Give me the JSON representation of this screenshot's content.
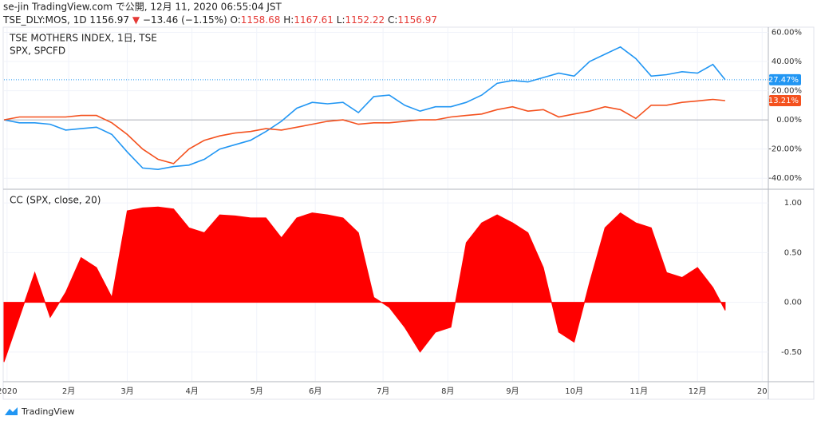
{
  "header": {
    "line1": "se-jin TradingView.com で公開, 12月 11, 2020 06:55:04 JST",
    "symbol": "TSE_DLY:MOS, 1D",
    "last": "1156.97",
    "arrow": "▼",
    "change": "−13.46 (−1.15%)",
    "ohlc": [
      {
        "label": "O:",
        "value": "1158.68"
      },
      {
        "label": "H:",
        "value": "1167.61"
      },
      {
        "label": "L:",
        "value": "1152.22"
      },
      {
        "label": "C:",
        "value": "1156.97"
      }
    ]
  },
  "chart_data": [
    {
      "type": "line",
      "grid": true,
      "x": [
        0,
        5,
        10,
        15,
        20,
        25,
        30,
        35,
        40,
        45,
        50,
        55,
        60,
        65,
        70,
        75,
        80,
        85,
        90,
        95,
        100,
        105,
        110,
        115,
        120,
        125,
        130,
        135,
        140,
        145,
        150,
        155,
        160,
        165,
        170,
        175,
        180,
        185,
        190,
        195,
        200,
        205,
        210,
        215,
        220,
        225,
        230,
        234
      ],
      "xlim": [
        0,
        248
      ],
      "xticks": [
        {
          "value": 1,
          "label": "2020"
        },
        {
          "value": 21,
          "label": "2月"
        },
        {
          "value": 40,
          "label": "3月"
        },
        {
          "value": 61,
          "label": "4月"
        },
        {
          "value": 82,
          "label": "5月"
        },
        {
          "value": 101,
          "label": "6月"
        },
        {
          "value": 123,
          "label": "7月"
        },
        {
          "value": 144,
          "label": "8月"
        },
        {
          "value": 165,
          "label": "9月"
        },
        {
          "value": 185,
          "label": "10月"
        },
        {
          "value": 206,
          "label": "11月"
        },
        {
          "value": 225,
          "label": "12月"
        },
        {
          "value": 246,
          "label": "20"
        }
      ],
      "ylim": [
        -47,
        63
      ],
      "yticks": [
        {
          "value": 60,
          "label": "60.00%"
        },
        {
          "value": 40,
          "label": "40.00%"
        },
        {
          "value": 20,
          "label": "20.00%"
        },
        {
          "value": 0,
          "label": "0.00%"
        },
        {
          "value": -20,
          "label": "-20.00%"
        },
        {
          "value": -40,
          "label": "-40.00%"
        }
      ],
      "series": [
        {
          "name": "TSE MOTHERS INDEX, 1日, TSE",
          "color": "#2196f3",
          "last_value_label": "27.47%",
          "values": [
            0,
            -2,
            -2,
            -3,
            -7,
            -6,
            -5,
            -10,
            -22,
            -33,
            -34,
            -32,
            -31,
            -27,
            -20,
            -17,
            -14,
            -8,
            -1,
            8,
            12,
            11,
            12,
            5,
            16,
            17,
            10,
            6,
            9,
            9,
            12,
            17,
            25,
            27,
            26,
            29,
            32,
            30,
            40,
            45,
            50,
            42,
            30,
            31,
            33,
            32,
            38,
            27.47
          ]
        },
        {
          "name": "SPX, SPCFD",
          "color": "#f4511e",
          "last_value_label": "13.21%",
          "values": [
            0,
            2,
            2,
            2,
            2,
            3,
            3,
            -2,
            -10,
            -20,
            -27,
            -30,
            -20,
            -14,
            -11,
            -9,
            -8,
            -6,
            -7,
            -5,
            -3,
            -1,
            0,
            -3,
            -2,
            -2,
            -1,
            0,
            0,
            2,
            3,
            4,
            7,
            9,
            6,
            7,
            2,
            4,
            6,
            9,
            7,
            1,
            10,
            10,
            12,
            13,
            14,
            13.21
          ]
        }
      ]
    },
    {
      "type": "area",
      "title": "CC (SPX, close, 20)",
      "grid": true,
      "color": "#ff0000",
      "x": [
        0,
        5,
        10,
        15,
        20,
        25,
        30,
        35,
        40,
        45,
        50,
        55,
        60,
        65,
        70,
        75,
        80,
        85,
        90,
        95,
        100,
        105,
        110,
        115,
        120,
        125,
        130,
        135,
        140,
        145,
        150,
        155,
        160,
        165,
        170,
        175,
        180,
        185,
        190,
        195,
        200,
        205,
        210,
        215,
        220,
        225,
        230,
        234
      ],
      "xlim": [
        0,
        248
      ],
      "xticks": [
        {
          "value": 1,
          "label": "2020"
        },
        {
          "value": 21,
          "label": "2月"
        },
        {
          "value": 40,
          "label": "3月"
        },
        {
          "value": 61,
          "label": "4月"
        },
        {
          "value": 82,
          "label": "5月"
        },
        {
          "value": 101,
          "label": "6月"
        },
        {
          "value": 123,
          "label": "7月"
        },
        {
          "value": 144,
          "label": "8月"
        },
        {
          "value": 165,
          "label": "9月"
        },
        {
          "value": 185,
          "label": "10月"
        },
        {
          "value": 206,
          "label": "11月"
        },
        {
          "value": 225,
          "label": "12月"
        },
        {
          "value": 246,
          "label": "20"
        }
      ],
      "ylim": [
        -0.79,
        1.13
      ],
      "yticks": [
        {
          "value": 1,
          "label": "1.00"
        },
        {
          "value": 0.5,
          "label": "0.50"
        },
        {
          "value": 0,
          "label": "0.00"
        },
        {
          "value": -0.5,
          "label": "-0.50"
        }
      ],
      "values": [
        -0.6,
        -0.15,
        0.3,
        -0.15,
        0.1,
        0.45,
        0.35,
        0.05,
        0.92,
        0.95,
        0.96,
        0.94,
        0.75,
        0.7,
        0.88,
        0.87,
        0.85,
        0.85,
        0.65,
        0.85,
        0.9,
        0.88,
        0.85,
        0.7,
        0.05,
        -0.05,
        -0.25,
        -0.5,
        -0.3,
        -0.25,
        0.6,
        0.8,
        0.88,
        0.8,
        0.7,
        0.35,
        -0.3,
        -0.4,
        0.2,
        0.75,
        0.9,
        0.8,
        0.75,
        0.3,
        0.25,
        0.35,
        0.15,
        -0.08
      ]
    }
  ],
  "footer": {
    "brand": "TradingView"
  }
}
